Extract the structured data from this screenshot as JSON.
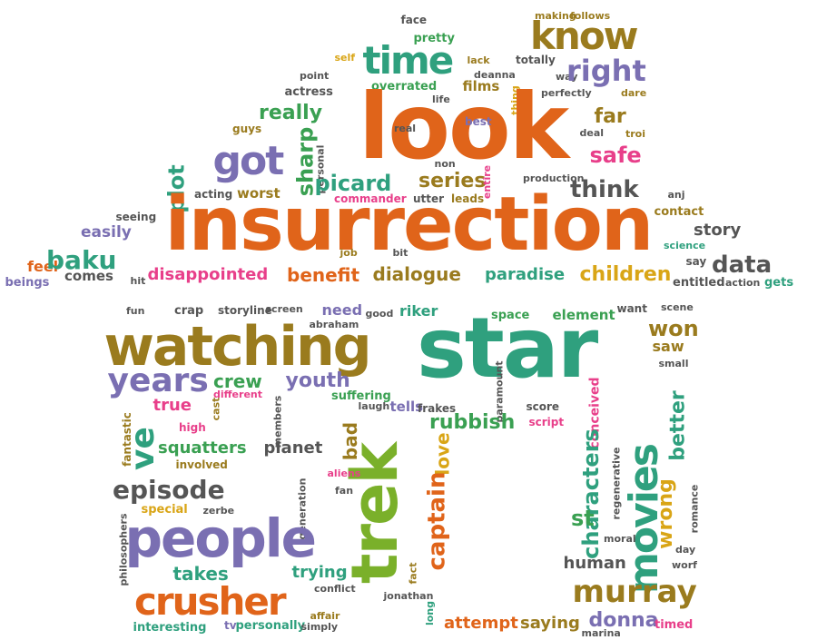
{
  "colors": {
    "orange": "#e0641a",
    "green": "#3aa052",
    "purple": "#7a6fb2",
    "brown": "#9a7b1e",
    "teal": "#2fa07e",
    "pink": "#e83f8a",
    "gray": "#555555",
    "yellow": "#d9a516",
    "lime": "#7ab02a"
  },
  "words": [
    "face",
    "pretty",
    "making",
    "follows",
    "know",
    "time",
    "self",
    "lack",
    "totally",
    "way",
    "deanna",
    "right",
    "point",
    "overrated",
    "films",
    "actress",
    "life",
    "dare",
    "perfectly",
    "thing",
    "look",
    "really",
    "guys",
    "real",
    "best",
    "far",
    "troi",
    "deal",
    "got",
    "sharp",
    "personal",
    "safe",
    "plot",
    "picard",
    "series",
    "non",
    "entire",
    "production",
    "acting",
    "worst",
    "commander",
    "utter",
    "leads",
    "think",
    "anj",
    "seeing",
    "insurrection",
    "contact",
    "easily",
    "job",
    "bit",
    "story",
    "science",
    "feel",
    "baku",
    "say",
    "beings",
    "comes",
    "hit",
    "disappointed",
    "benefit",
    "dialogue",
    "paradise",
    "children",
    "data",
    "entitled",
    "action",
    "gets",
    "fun",
    "crap",
    "storyline",
    "screen",
    "need",
    "good",
    "riker",
    "space",
    "element",
    "want",
    "scene",
    "abraham",
    "watching",
    "star",
    "won",
    "years",
    "crew",
    "youth",
    "saw",
    "small",
    "true",
    "different",
    "cast",
    "tells",
    "frakes",
    "laugh",
    "suffering",
    "paramount",
    "score",
    "conceived",
    "fantastic",
    "high",
    "members",
    "ve",
    "rubbish",
    "script",
    "trek",
    "better",
    "bad",
    "squatters",
    "planet",
    "love",
    "involved",
    "episode",
    "aliens",
    "characters",
    "movies",
    "fan",
    "regenerative",
    "special",
    "zerbe",
    "generation",
    "captain",
    "st",
    "wrong",
    "romance",
    "people",
    "moral",
    "day",
    "philosophers",
    "takes",
    "trying",
    "fact",
    "human",
    "worf",
    "crusher",
    "conflict",
    "murray",
    "jonathan",
    "long",
    "affair",
    "interesting",
    "tv",
    "personally",
    "simply",
    "attempt",
    "saying",
    "donna",
    "marina",
    "timed"
  ]
}
